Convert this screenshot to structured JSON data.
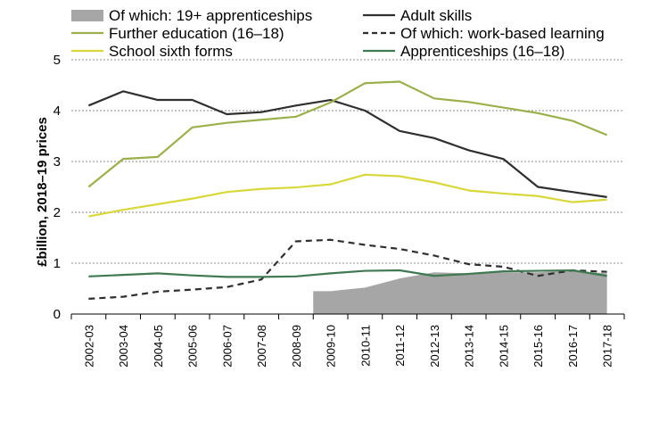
{
  "chart_data": {
    "type": "line",
    "title": "",
    "ylabel": "£billion, 2018–19 prices",
    "xlabel": "",
    "ylim": [
      0,
      5
    ],
    "yticks": [
      0,
      1,
      2,
      3,
      4,
      5
    ],
    "grid": "horizontal dotted",
    "legend_position": "top",
    "categories": [
      "2002-03",
      "2003-04",
      "2004-05",
      "2005-06",
      "2006-07",
      "2007-08",
      "2008-09",
      "2009-10",
      "2010-11",
      "2011-12",
      "2012-13",
      "2013-14",
      "2014-15",
      "2015-16",
      "2016-17",
      "2017-18"
    ],
    "area_series": {
      "name": "Of which: 19+ apprenticeships",
      "color": "#a6a6a6",
      "values": [
        null,
        null,
        null,
        null,
        null,
        null,
        null,
        0.45,
        0.52,
        0.7,
        0.82,
        0.8,
        0.82,
        0.82,
        0.85,
        0.8
      ]
    },
    "series": [
      {
        "name": "Adult skills",
        "color": "#2f2f2f",
        "dashed": false,
        "values": [
          4.1,
          4.38,
          4.21,
          4.21,
          3.93,
          3.97,
          4.1,
          4.21,
          4.0,
          3.6,
          3.46,
          3.22,
          3.05,
          2.5,
          2.4,
          2.3
        ]
      },
      {
        "name": "Further education (16–18)",
        "color": "#9ab04a",
        "dashed": false,
        "values": [
          2.5,
          3.05,
          3.09,
          3.67,
          3.76,
          3.82,
          3.88,
          4.16,
          4.54,
          4.57,
          4.24,
          4.17,
          4.06,
          3.95,
          3.8,
          3.52
        ]
      },
      {
        "name": "Of which: work-based learning",
        "color": "#2f2f2f",
        "dashed": true,
        "values": [
          0.3,
          0.34,
          0.44,
          0.48,
          0.53,
          0.68,
          1.43,
          1.46,
          1.36,
          1.28,
          1.15,
          0.98,
          0.93,
          0.75,
          0.86,
          0.83
        ]
      },
      {
        "name": "School sixth forms",
        "color": "#d8d83a",
        "dashed": false,
        "values": [
          1.92,
          2.05,
          2.16,
          2.27,
          2.4,
          2.46,
          2.49,
          2.55,
          2.74,
          2.71,
          2.59,
          2.43,
          2.37,
          2.32,
          2.2,
          2.25
        ]
      },
      {
        "name": "Apprenticeships (16–18)",
        "color": "#3f7a52",
        "dashed": false,
        "values": [
          0.74,
          0.77,
          0.8,
          0.76,
          0.73,
          0.73,
          0.74,
          0.8,
          0.85,
          0.86,
          0.75,
          0.79,
          0.84,
          0.85,
          0.86,
          0.75
        ]
      }
    ]
  }
}
